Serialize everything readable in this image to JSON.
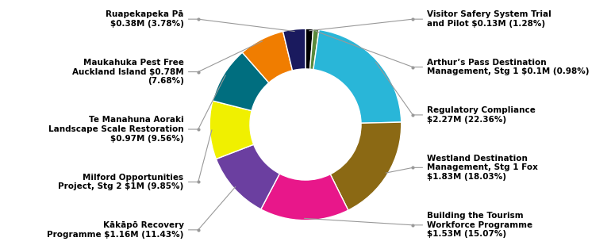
{
  "chart_data": {
    "type": "donut",
    "categories": [
      "Visitor Safery System Trial\nand Pilot $0.13M (1.28%)",
      "Arthur’s Pass Destination\nManagement, Stg 1 $0.1M (0.98%)",
      "Regulatory Compliance\n$2.27M (22.36%)",
      "Westland Destination\nManagement, Stg 1 Fox\n$1.83M (18.03%)",
      "Building the Tourism\nWorkforce Programme\n$1.53M (15.07%)",
      "Kākāpō Recovery\nProgramme $1.16M (11.43%)",
      "Milford Opportunities\nProject, Stg 2 $1M (9.85%)",
      "Te Manahuna Aoraki\nLandscape Scale Restoration\n$0.97M (9.56%)",
      "Maukahuka Pest Free\nAuckland Island $0.78M\n(7.68%)",
      "Ruapekapeka Pā\n$0.38M (3.78%)"
    ],
    "values": [
      1.28,
      0.98,
      22.36,
      18.03,
      15.07,
      11.43,
      9.85,
      9.56,
      7.68,
      3.78
    ],
    "colors": [
      "#000000",
      "#5a8a3c",
      "#29b6d8",
      "#8b6914",
      "#e8178a",
      "#6b3fa0",
      "#f0f000",
      "#006e7f",
      "#f07d00",
      "#1a1a5e"
    ]
  }
}
